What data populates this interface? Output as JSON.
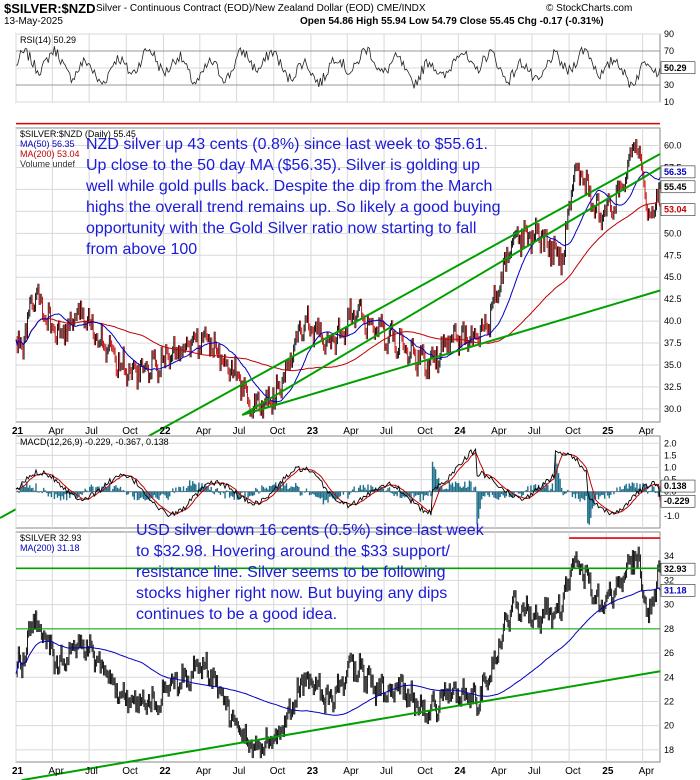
{
  "header": {
    "symbol": "$SILVER:$NZD",
    "description": "Silver - Continuous Contract (EOD)/New Zealand Dollar (EOD) CME/INDX",
    "date": "13-May-2025",
    "brand": "© StockCharts.com",
    "ohlc": {
      "open_label": "Open",
      "open": "54.86",
      "high_label": "High",
      "high": "55.94",
      "low_label": "Low",
      "low": "54.79",
      "close_label": "Close",
      "close": "55.45",
      "chg_label": "Chg",
      "chg": "-0.17 (-0.31%)"
    }
  },
  "annotations": {
    "nzd_note": "NZD silver up 43 cents (0.8%) since last week to $55.61. Up close to the 50 day MA ($56.35). Silver is golding up well while gold pulls back. Despite the dip from the March highs the overall trend remains up. So likely a good buying opportunity with the Gold Silver ratio now starting to fall from above 100",
    "usd_note": "USD silver down 16 cents (0.5%) since last week to $32.98. Hovering around the $33 support/ resistance line. Silver seems to be following stocks higher right now. But buying any dips continues to be a good idea."
  },
  "colors": {
    "price": "#000000",
    "down": "#c00000",
    "ma50": "#0000c0",
    "ma200": "#c00000",
    "trend": "#00a000",
    "resistance": "#e00000",
    "macd_hist": "#1f6f8b",
    "note": "#1a1ad8"
  },
  "x_axis_labels": [
    {
      "label": "21",
      "bold": true
    },
    {
      "label": "Apr"
    },
    {
      "label": "Jul"
    },
    {
      "label": "Oct"
    },
    {
      "label": "22",
      "bold": true
    },
    {
      "label": "Apr"
    },
    {
      "label": "Jul"
    },
    {
      "label": "Oct"
    },
    {
      "label": "23",
      "bold": true
    },
    {
      "label": "Apr"
    },
    {
      "label": "Jul"
    },
    {
      "label": "Oct"
    },
    {
      "label": "24",
      "bold": true
    },
    {
      "label": "Apr"
    },
    {
      "label": "Jul"
    },
    {
      "label": "Oct"
    },
    {
      "label": "25",
      "bold": true
    },
    {
      "label": "Apr"
    }
  ],
  "chart_data": [
    {
      "type": "line",
      "name": "RSI panel",
      "legend": "RSI(14) 50.29",
      "series": [
        {
          "name": "RSI(14)",
          "last": 50.29
        }
      ],
      "ylim": [
        10,
        90
      ],
      "yticks": [
        10,
        30,
        50,
        70,
        90
      ],
      "reference_lines": [
        30,
        70
      ],
      "last_tag": "50.29"
    },
    {
      "type": "line",
      "name": "NZD silver price panel",
      "legend": [
        "$SILVER:$NZD (Daily) 55.45",
        "MA(50) 56.35",
        "MA(200) 53.04",
        "Volume undef"
      ],
      "ylim": [
        28.5,
        62
      ],
      "yticks": [
        30.0,
        32.5,
        35.0,
        37.5,
        40.0,
        42.5,
        45.0,
        47.5,
        50.0,
        52.5,
        55.0,
        57.5,
        60.0
      ],
      "x_range": [
        "2021-01",
        "2025-05"
      ],
      "series": [
        {
          "name": "$SILVER:$NZD",
          "x": [
            "2021-01",
            "2021-02",
            "2021-04",
            "2021-06",
            "2021-08",
            "2021-10",
            "2021-12",
            "2022-02",
            "2022-04",
            "2022-06",
            "2022-08",
            "2022-10",
            "2022-12",
            "2023-02",
            "2023-04",
            "2023-06",
            "2023-08",
            "2023-10",
            "2023-12",
            "2024-02",
            "2024-03",
            "2024-05",
            "2024-07",
            "2024-09",
            "2024-10",
            "2024-12",
            "2025-02",
            "2025-03",
            "2025-04",
            "2025-05"
          ],
          "values": [
            37,
            43,
            38,
            41,
            37,
            34,
            35,
            37,
            38,
            35,
            30,
            32,
            40,
            37,
            41,
            39,
            37,
            35,
            38,
            38,
            40,
            49,
            50,
            47,
            58,
            52,
            55,
            61,
            52,
            55.45
          ]
        },
        {
          "name": "MA(50)",
          "last": 56.35
        },
        {
          "name": "MA(200)",
          "last": 53.04
        }
      ],
      "last_tags": [
        "56.35",
        "55.45",
        "53.04"
      ],
      "resistance_level": 62.5,
      "trendlines": [
        {
          "from": [
            "2022-07",
            29.3
          ],
          "to": [
            "2025-05",
            57.5
          ]
        },
        {
          "from": [
            "2022-07",
            29.3
          ],
          "to": [
            "2025-05",
            43.5
          ]
        }
      ]
    },
    {
      "type": "line",
      "name": "MACD panel",
      "legend": "MACD(12,26,9) -0.229, -0.367, 0.138",
      "series": [
        {
          "name": "MACD",
          "last": -0.229
        },
        {
          "name": "Signal",
          "last": -0.367
        },
        {
          "name": "Histogram",
          "last": 0.138
        }
      ],
      "ylim": [
        -1.5,
        2.3
      ],
      "yticks": [
        -1.0,
        -0.5,
        0.0,
        0.5,
        1.0,
        1.5,
        2.0
      ],
      "last_tags": [
        "0.138",
        "-0.229"
      ]
    },
    {
      "type": "line",
      "name": "USD silver price panel",
      "legend": [
        "$SILVER 32.93",
        "MA(200) 31.18"
      ],
      "ylim": [
        17,
        36
      ],
      "yticks": [
        18,
        20,
        22,
        24,
        26,
        28,
        30,
        32,
        34
      ],
      "series": [
        {
          "name": "$SILVER",
          "x": [
            "2021-01",
            "2021-02",
            "2021-04",
            "2021-06",
            "2021-08",
            "2021-10",
            "2021-12",
            "2022-02",
            "2022-04",
            "2022-06",
            "2022-08",
            "2022-10",
            "2022-12",
            "2023-02",
            "2023-04",
            "2023-06",
            "2023-08",
            "2023-10",
            "2023-12",
            "2024-02",
            "2024-03",
            "2024-05",
            "2024-07",
            "2024-09",
            "2024-10",
            "2024-12",
            "2025-02",
            "2025-03",
            "2025-04",
            "2025-05"
          ],
          "values": [
            25,
            29,
            25,
            27,
            24,
            22,
            22,
            24,
            25,
            21,
            18,
            19,
            24,
            22,
            25,
            23,
            23,
            21,
            23,
            22,
            24,
            30,
            29,
            30,
            34,
            30,
            32,
            34.5,
            29,
            32.93
          ]
        },
        {
          "name": "MA(200)",
          "last": 31.18
        }
      ],
      "last_tags": [
        "32.93",
        "31.18"
      ],
      "horizontal_lines": [
        {
          "level": 33,
          "color": "trend"
        },
        {
          "level": 28,
          "color": "trend"
        },
        {
          "level": 35.5,
          "color": "resistance"
        }
      ],
      "trendlines": [
        {
          "from": [
            "2021-01",
            15.5
          ],
          "to": [
            "2025-05",
            24.5
          ]
        }
      ]
    }
  ]
}
